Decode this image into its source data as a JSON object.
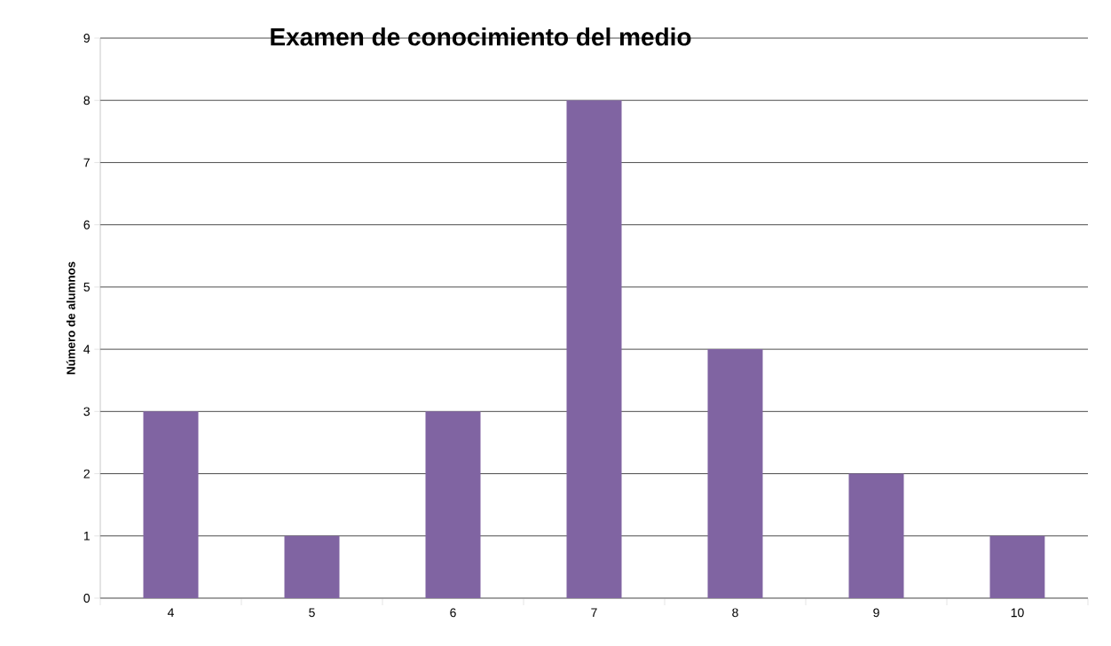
{
  "chart_data": {
    "type": "bar",
    "title": "Examen de conocimiento del medio",
    "ylabel": "Número de alumnos",
    "categories": [
      "4",
      "5",
      "6",
      "7",
      "8",
      "9",
      "10"
    ],
    "values": [
      3,
      1,
      3,
      8,
      4,
      2,
      1
    ],
    "color": "#8064a2",
    "ylim": [
      0,
      9
    ],
    "yticks": [
      0,
      1,
      2,
      3,
      4,
      5,
      6,
      7,
      8,
      9
    ],
    "grid": "y"
  }
}
